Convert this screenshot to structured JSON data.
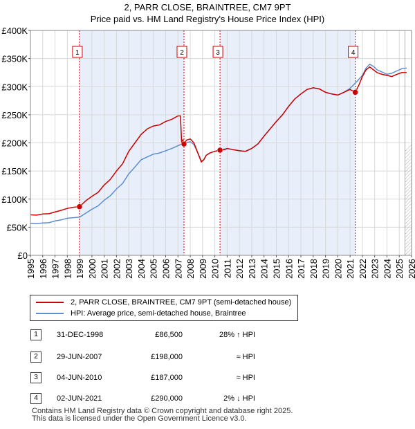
{
  "chart_data": {
    "type": "line",
    "title": "2, PARR CLOSE, BRAINTREE, CM7 9PT",
    "subtitle": "Price paid vs. HM Land Registry's House Price Index (HPI)",
    "ylabel": "",
    "xlabel": "",
    "xlim": [
      1995,
      2026
    ],
    "ylim": [
      0,
      400000
    ],
    "y_ticks": [
      0,
      50000,
      100000,
      150000,
      200000,
      250000,
      300000,
      350000,
      400000
    ],
    "y_tick_labels": [
      "£0",
      "£50K",
      "£100K",
      "£150K",
      "£200K",
      "£250K",
      "£300K",
      "£350K",
      "£400K"
    ],
    "x_ticks": [
      1995,
      1996,
      1997,
      1998,
      1999,
      2000,
      2001,
      2002,
      2003,
      2004,
      2005,
      2006,
      2007,
      2008,
      2009,
      2010,
      2011,
      2012,
      2013,
      2014,
      2015,
      2016,
      2017,
      2018,
      2019,
      2020,
      2021,
      2022,
      2023,
      2024,
      2025,
      2026
    ],
    "x_tick_labels": [
      "1995",
      "1996",
      "1997",
      "1998",
      "1999",
      "2000",
      "2001",
      "2002",
      "2003",
      "2004",
      "2005",
      "2006",
      "2007",
      "2008",
      "2009",
      "2010",
      "2011",
      "2012",
      "2013",
      "2014",
      "2015",
      "2016",
      "2017",
      "2018",
      "2019",
      "2020",
      "2021",
      "2022",
      "2023",
      "2024",
      "2025",
      "2026"
    ],
    "grid": true,
    "legend_position": "below",
    "shaded_regions": [
      [
        1999.0,
        2007.49
      ],
      [
        2010.42,
        2021.42
      ]
    ],
    "forecast_start": 2025.45,
    "series": [
      {
        "name": "2, PARR CLOSE, BRAINTREE, CM7 9PT (semi-detached house)",
        "color": "#cc0000",
        "x": [
          1995.0,
          1995.5,
          1996.0,
          1996.5,
          1997.0,
          1997.5,
          1998.0,
          1998.5,
          1998.99,
          1999.5,
          2000.0,
          2000.5,
          2001.0,
          2001.5,
          2002.0,
          2002.5,
          2003.0,
          2003.5,
          2004.0,
          2004.5,
          2005.0,
          2005.5,
          2006.0,
          2006.5,
          2007.0,
          2007.2,
          2007.3,
          2007.4,
          2007.49,
          2007.7,
          2008.0,
          2008.3,
          2008.6,
          2008.9,
          2009.1,
          2009.3,
          2009.6,
          2010.0,
          2010.42,
          2010.8,
          2011.0,
          2011.5,
          2012.0,
          2012.5,
          2013.0,
          2013.5,
          2014.0,
          2014.5,
          2015.0,
          2015.5,
          2016.0,
          2016.5,
          2017.0,
          2017.5,
          2018.0,
          2018.5,
          2019.0,
          2019.5,
          2020.0,
          2020.5,
          2021.0,
          2021.42,
          2021.7,
          2022.0,
          2022.3,
          2022.6,
          2022.9,
          2023.2,
          2023.6,
          2024.0,
          2024.4,
          2024.8,
          2025.2,
          2025.6
        ],
        "y": [
          72000,
          71500,
          73500,
          74000,
          77000,
          80000,
          83500,
          85500,
          86500,
          97000,
          105000,
          112000,
          125000,
          135000,
          150000,
          163000,
          185000,
          200000,
          215000,
          225000,
          230000,
          232000,
          238000,
          242000,
          248000,
          248000,
          202000,
          205000,
          198000,
          205000,
          207000,
          200000,
          183000,
          166000,
          170000,
          178000,
          182000,
          185000,
          187000,
          188000,
          190000,
          188000,
          186000,
          185000,
          190000,
          198000,
          212000,
          225000,
          238000,
          250000,
          265000,
          278000,
          287000,
          295000,
          298000,
          296000,
          290000,
          287000,
          285000,
          290000,
          295000,
          290000,
          302000,
          318000,
          330000,
          335000,
          330000,
          325000,
          322000,
          320000,
          318000,
          322000,
          325000,
          325000
        ]
      },
      {
        "name": "HPI: Average price, semi-detached house, Braintree",
        "color": "#5b8fd0",
        "x": [
          1995.0,
          1995.5,
          1996.0,
          1996.5,
          1997.0,
          1997.5,
          1998.0,
          1998.5,
          1999.0,
          1999.5,
          2000.0,
          2000.5,
          2001.0,
          2001.5,
          2002.0,
          2002.5,
          2003.0,
          2003.5,
          2004.0,
          2004.5,
          2005.0,
          2005.5,
          2006.0,
          2006.5,
          2007.0,
          2007.5,
          2008.0,
          2008.3,
          2008.6,
          2008.9,
          2009.1,
          2009.3,
          2009.6,
          2010.0,
          2010.5,
          2011.0,
          2011.5,
          2012.0,
          2012.5,
          2013.0,
          2013.5,
          2014.0,
          2014.5,
          2015.0,
          2015.5,
          2016.0,
          2016.5,
          2017.0,
          2017.5,
          2018.0,
          2018.5,
          2019.0,
          2019.5,
          2020.0,
          2020.5,
          2021.0,
          2021.5,
          2022.0,
          2022.3,
          2022.6,
          2022.9,
          2023.2,
          2023.6,
          2024.0,
          2024.4,
          2024.8,
          2025.2,
          2025.6
        ],
        "y": [
          57000,
          56500,
          57500,
          58000,
          61000,
          63000,
          66000,
          67000,
          68000,
          75000,
          82000,
          88000,
          98000,
          106000,
          118000,
          128000,
          145000,
          157000,
          170000,
          175000,
          180000,
          182000,
          186000,
          190000,
          195000,
          200000,
          202000,
          197000,
          183000,
          168000,
          170000,
          178000,
          182000,
          185000,
          188000,
          190000,
          188000,
          186000,
          185000,
          190000,
          198000,
          212000,
          225000,
          238000,
          250000,
          265000,
          278000,
          287000,
          295000,
          298000,
          296000,
          290000,
          287000,
          285000,
          290000,
          297000,
          308000,
          320000,
          333000,
          340000,
          336000,
          330000,
          326000,
          322000,
          324000,
          328000,
          332000,
          333000
        ]
      }
    ],
    "markers": [
      {
        "label": "1",
        "x": 1998.99,
        "y": 86500
      },
      {
        "label": "2",
        "x": 2007.49,
        "y": 198000
      },
      {
        "label": "3",
        "x": 2010.42,
        "y": 187000
      },
      {
        "label": "4",
        "x": 2021.42,
        "y": 290000
      }
    ]
  },
  "legend": {
    "items": [
      {
        "label": "2, PARR CLOSE, BRAINTREE, CM7 9PT (semi-detached house)",
        "color": "#cc0000"
      },
      {
        "label": "HPI: Average price, semi-detached house, Braintree",
        "color": "#5b8fd0"
      }
    ]
  },
  "transactions": [
    {
      "num": "1",
      "date": "31-DEC-1998",
      "price": "£86,500",
      "hpi": "28% ↑ HPI"
    },
    {
      "num": "2",
      "date": "29-JUN-2007",
      "price": "£198,000",
      "hpi": "≈ HPI"
    },
    {
      "num": "3",
      "date": "04-JUN-2010",
      "price": "£187,000",
      "hpi": "≈ HPI"
    },
    {
      "num": "4",
      "date": "02-JUN-2021",
      "price": "£290,000",
      "hpi": "2% ↓ HPI"
    }
  ],
  "footer": {
    "line1": "Contains HM Land Registry data © Crown copyright and database right 2025.",
    "line2": "This data is licensed under the Open Government Licence v3.0."
  }
}
